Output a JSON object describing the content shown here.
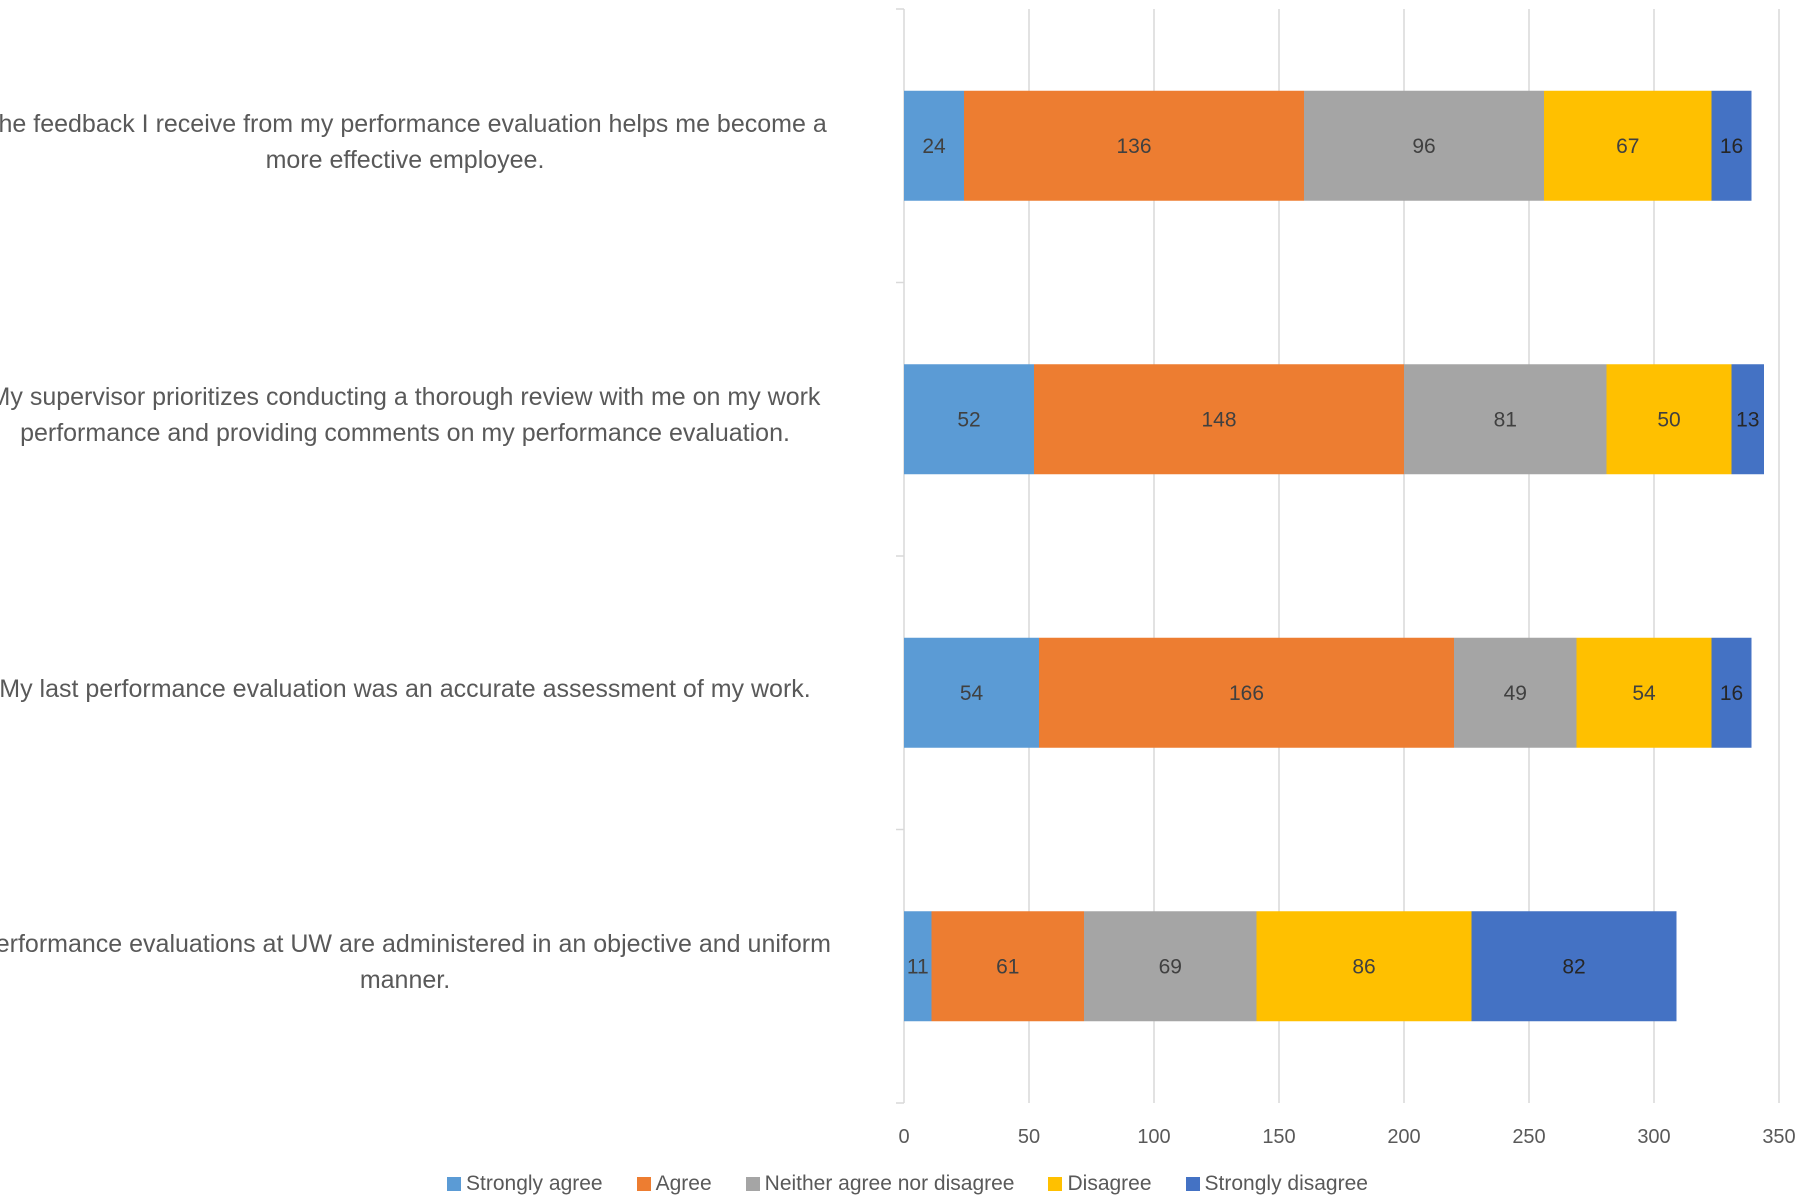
{
  "chart_data": {
    "type": "bar",
    "orientation": "horizontal",
    "stacked": true,
    "title": "",
    "xlabel": "",
    "ylabel": "",
    "xlim": [
      0,
      350
    ],
    "x_ticks": [
      0,
      50,
      100,
      150,
      200,
      250,
      300,
      350
    ],
    "grid": true,
    "legend_position": "bottom",
    "categories": [
      "The feedback I receive from my performance evaluation helps me become a more effective employee.",
      "My supervisor prioritizes conducting a thorough review with me on my work performance and providing comments on my performance evaluation.",
      "My last performance evaluation was an accurate assessment of my work.",
      "Performance evaluations at UW are administered in an objective and uniform manner."
    ],
    "series": [
      {
        "name": "Strongly agree",
        "color": "#5b9bd5",
        "values": [
          24,
          52,
          54,
          11
        ]
      },
      {
        "name": "Agree",
        "color": "#ed7d31",
        "values": [
          136,
          148,
          166,
          61
        ]
      },
      {
        "name": "Neither agree nor disagree",
        "color": "#a5a5a5",
        "values": [
          96,
          81,
          49,
          69
        ]
      },
      {
        "name": "Disagree",
        "color": "#ffc000",
        "values": [
          67,
          50,
          54,
          86
        ]
      },
      {
        "name": "Strongly disagree",
        "color": "#4472c4",
        "values": [
          16,
          13,
          16,
          82
        ]
      }
    ]
  }
}
